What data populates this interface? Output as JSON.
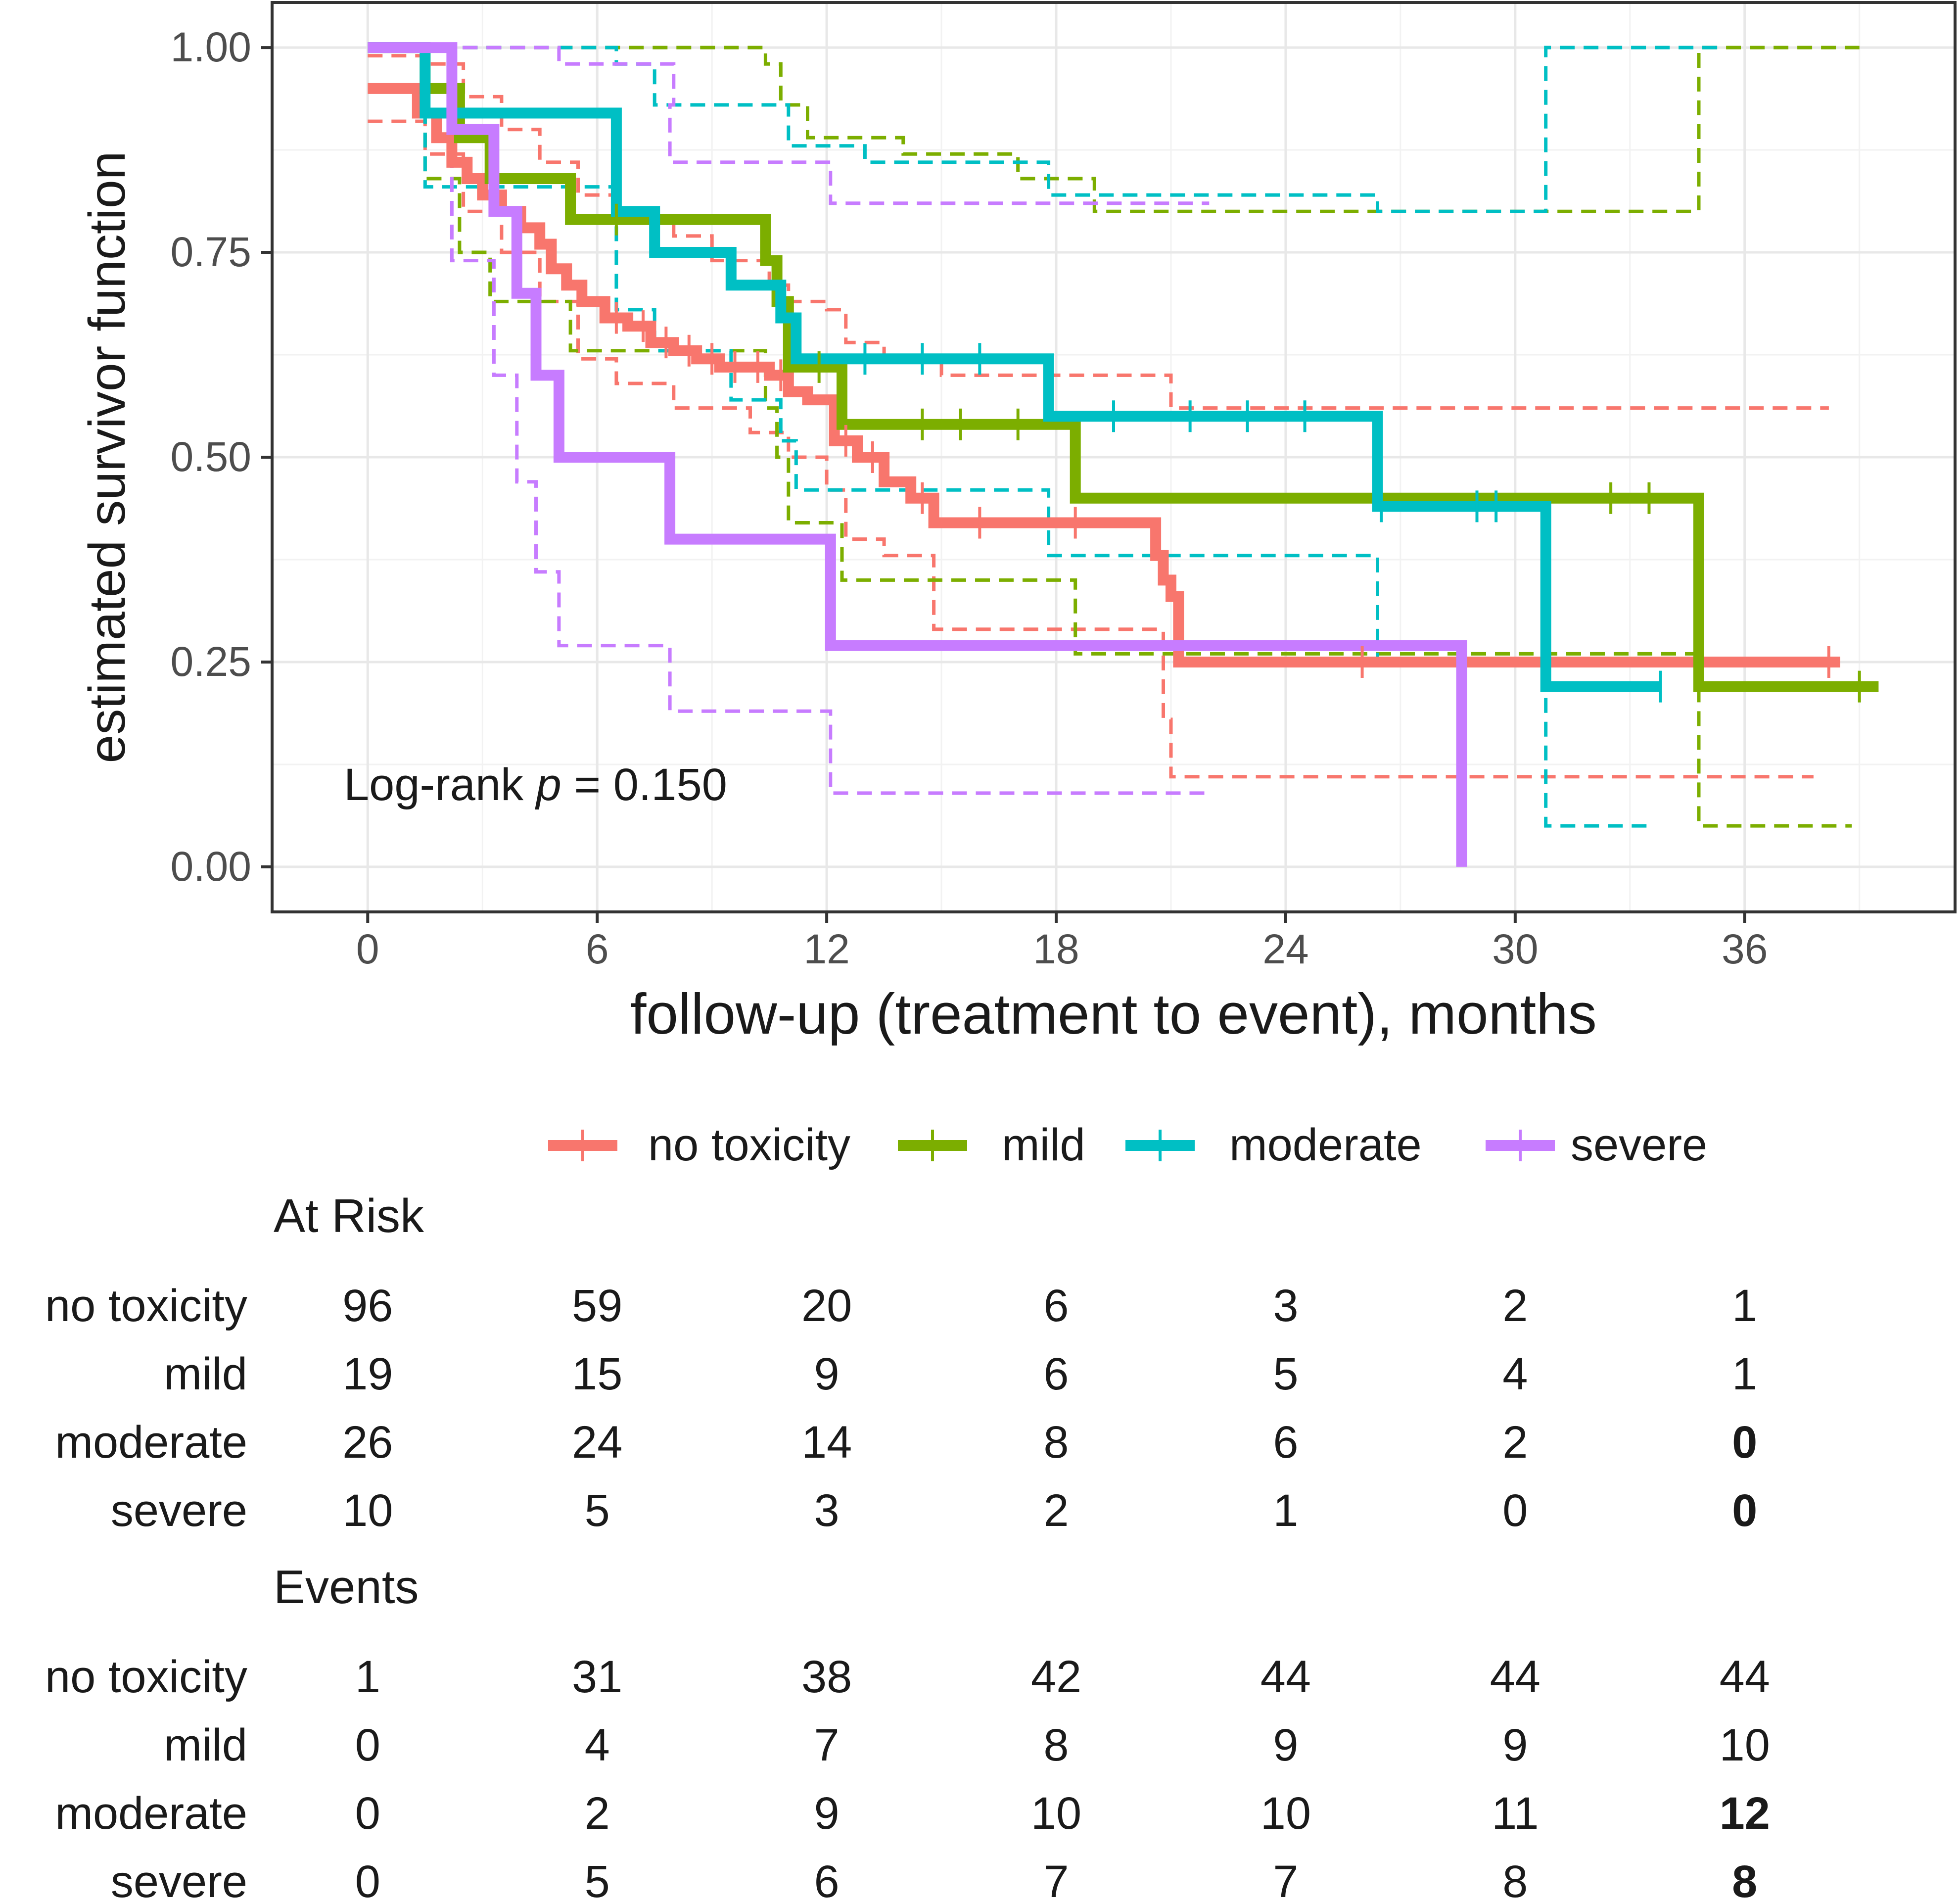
{
  "chart_data": {
    "type": "line",
    "subtype": "kaplan-meier",
    "title": "",
    "xlabel": "follow-up (treatment to event), months",
    "ylabel": "estimated survivor function",
    "xlim": [
      -2.5,
      41.5
    ],
    "ylim": [
      -0.055,
      1.055
    ],
    "x_ticks": [
      0,
      6,
      12,
      18,
      24,
      30,
      36
    ],
    "x_tick_labels": [
      "0",
      "6",
      "12",
      "18",
      "24",
      "30",
      "36"
    ],
    "y_ticks": [
      0,
      0.25,
      0.5,
      0.75,
      1
    ],
    "y_tick_labels": [
      "0.00",
      "0.25",
      "0.50",
      "0.75",
      "1.00"
    ],
    "grid": true,
    "annotation": {
      "prefix": "Log-rank ",
      "italic": "p",
      "suffix": " = 0.150"
    },
    "legend": {
      "position": "bottom",
      "entries": [
        "no toxicity",
        "mild",
        "moderate",
        "severe"
      ]
    },
    "series": [
      {
        "name": "no toxicity",
        "color": "#f8766d",
        "steps": [
          [
            0,
            0.95
          ],
          [
            1.3,
            0.92
          ],
          [
            1.8,
            0.89
          ],
          [
            2.2,
            0.86
          ],
          [
            2.6,
            0.84
          ],
          [
            3.0,
            0.82
          ],
          [
            3.5,
            0.8
          ],
          [
            4.0,
            0.78
          ],
          [
            4.5,
            0.76
          ],
          [
            4.8,
            0.73
          ],
          [
            5.2,
            0.71
          ],
          [
            5.6,
            0.69
          ],
          [
            6.2,
            0.67
          ],
          [
            6.8,
            0.66
          ],
          [
            7.4,
            0.64
          ],
          [
            8.0,
            0.63
          ],
          [
            8.6,
            0.62
          ],
          [
            9.2,
            0.61
          ],
          [
            10.5,
            0.6
          ],
          [
            11.0,
            0.58
          ],
          [
            11.5,
            0.57
          ],
          [
            12.2,
            0.52
          ],
          [
            12.8,
            0.5
          ],
          [
            13.5,
            0.47
          ],
          [
            14.2,
            0.45
          ],
          [
            14.8,
            0.42
          ],
          [
            20.6,
            0.38
          ],
          [
            20.8,
            0.35
          ],
          [
            21.0,
            0.33
          ],
          [
            21.2,
            0.25
          ]
        ],
        "end": 38.5,
        "upper": [
          [
            0,
            0.99
          ],
          [
            1.5,
            0.98
          ],
          [
            2.5,
            0.94
          ],
          [
            3.5,
            0.9
          ],
          [
            4.5,
            0.86
          ],
          [
            5.5,
            0.82
          ],
          [
            6.5,
            0.79
          ],
          [
            8.0,
            0.77
          ],
          [
            9.0,
            0.74
          ],
          [
            10.5,
            0.71
          ],
          [
            11.0,
            0.69
          ],
          [
            12.0,
            0.68
          ],
          [
            12.5,
            0.64
          ],
          [
            13.5,
            0.62
          ],
          [
            15.0,
            0.6
          ],
          [
            21.0,
            0.56
          ]
        ],
        "upper_end": 38.2,
        "lower": [
          [
            0,
            0.91
          ],
          [
            1.5,
            0.87
          ],
          [
            2.5,
            0.8
          ],
          [
            3.5,
            0.75
          ],
          [
            4.5,
            0.69
          ],
          [
            5.5,
            0.62
          ],
          [
            6.5,
            0.59
          ],
          [
            8.0,
            0.56
          ],
          [
            10.0,
            0.53
          ],
          [
            11.0,
            0.5
          ],
          [
            12.0,
            0.46
          ],
          [
            12.5,
            0.4
          ],
          [
            13.5,
            0.38
          ],
          [
            14.8,
            0.29
          ],
          [
            20.8,
            0.18
          ],
          [
            21.0,
            0.11
          ]
        ],
        "lower_end": 37.8,
        "censor": [
          6.5,
          7.2,
          7.8,
          8.4,
          9.0,
          9.6,
          10.2,
          10.8,
          12.5,
          13.2,
          14.5,
          16.0,
          18.5,
          26.0,
          38.2
        ]
      },
      {
        "name": "mild",
        "color": "#7cae00",
        "steps": [
          [
            0,
            1.0
          ],
          [
            1.5,
            0.95
          ],
          [
            2.4,
            0.89
          ],
          [
            3.2,
            0.84
          ],
          [
            5.3,
            0.79
          ],
          [
            10.4,
            0.74
          ],
          [
            10.7,
            0.69
          ],
          [
            11.0,
            0.61
          ],
          [
            12.4,
            0.54
          ],
          [
            18.5,
            0.45
          ],
          [
            34.8,
            0.22
          ]
        ],
        "end": 39.5,
        "upper": [
          [
            0,
            1.0
          ],
          [
            10.4,
            0.98
          ],
          [
            10.8,
            0.93
          ],
          [
            11.5,
            0.89
          ],
          [
            14.0,
            0.87
          ],
          [
            17.0,
            0.84
          ],
          [
            19.0,
            0.8
          ],
          [
            34.8,
            1.0
          ]
        ],
        "upper_end": 39.0,
        "lower": [
          [
            0,
            1.0
          ],
          [
            1.5,
            0.84
          ],
          [
            2.4,
            0.75
          ],
          [
            3.2,
            0.69
          ],
          [
            5.3,
            0.63
          ],
          [
            10.4,
            0.56
          ],
          [
            10.7,
            0.5
          ],
          [
            11.0,
            0.42
          ],
          [
            12.4,
            0.35
          ],
          [
            18.5,
            0.26
          ],
          [
            34.8,
            0.05
          ]
        ],
        "lower_end": 38.8,
        "censor": [
          6.5,
          11.8,
          14.5,
          15.5,
          17.0,
          32.5,
          33.5,
          39.0
        ]
      },
      {
        "name": "moderate",
        "color": "#00bfc4",
        "steps": [
          [
            0,
            1.0
          ],
          [
            1.5,
            0.92
          ],
          [
            6.5,
            0.8
          ],
          [
            7.5,
            0.75
          ],
          [
            9.5,
            0.71
          ],
          [
            10.8,
            0.67
          ],
          [
            11.2,
            0.62
          ],
          [
            17.8,
            0.55
          ],
          [
            26.4,
            0.44
          ],
          [
            30.8,
            0.22
          ]
        ],
        "end": 33.8,
        "upper": [
          [
            0,
            1.0
          ],
          [
            6.5,
            0.98
          ],
          [
            7.5,
            0.93
          ],
          [
            11.0,
            0.88
          ],
          [
            13.0,
            0.86
          ],
          [
            17.8,
            0.82
          ],
          [
            26.4,
            0.8
          ],
          [
            30.8,
            1.0
          ]
        ],
        "upper_end": 35.5,
        "lower": [
          [
            0,
            1.0
          ],
          [
            1.5,
            0.83
          ],
          [
            6.5,
            0.68
          ],
          [
            7.5,
            0.63
          ],
          [
            9.5,
            0.57
          ],
          [
            10.8,
            0.52
          ],
          [
            11.2,
            0.46
          ],
          [
            17.8,
            0.38
          ],
          [
            26.4,
            0.25
          ],
          [
            30.8,
            0.05
          ]
        ],
        "lower_end": 33.5,
        "censor": [
          13.0,
          14.5,
          16.0,
          19.5,
          21.5,
          23.0,
          24.5,
          26.5,
          29.0,
          29.5,
          33.8
        ]
      },
      {
        "name": "severe",
        "color": "#c77cff",
        "steps": [
          [
            0,
            1.0
          ],
          [
            2.2,
            0.9
          ],
          [
            3.3,
            0.8
          ],
          [
            3.9,
            0.7
          ],
          [
            4.4,
            0.6
          ],
          [
            5.0,
            0.5
          ],
          [
            7.9,
            0.4
          ],
          [
            12.1,
            0.27
          ],
          [
            28.6,
            0.0
          ]
        ],
        "end": 28.6,
        "upper": [
          [
            0,
            1.0
          ],
          [
            5.0,
            0.98
          ],
          [
            8.0,
            0.93
          ],
          [
            7.9,
            0.86
          ],
          [
            12.1,
            0.81
          ]
        ],
        "upper_end": 22.0,
        "lower": [
          [
            0,
            1.0
          ],
          [
            2.2,
            0.74
          ],
          [
            3.3,
            0.6
          ],
          [
            3.9,
            0.47
          ],
          [
            4.4,
            0.36
          ],
          [
            5.0,
            0.27
          ],
          [
            7.9,
            0.19
          ],
          [
            12.1,
            0.09
          ]
        ],
        "lower_end": 22.0,
        "censor": []
      }
    ],
    "risk_tables": [
      {
        "title": "At Risk",
        "times": [
          0,
          6,
          12,
          18,
          24,
          30,
          36
        ],
        "rows": [
          {
            "group": "no toxicity",
            "values": [
              "96",
              "59",
              "20",
              "6",
              "3",
              "2",
              "1"
            ]
          },
          {
            "group": "mild",
            "values": [
              "19",
              "15",
              "9",
              "6",
              "5",
              "4",
              "1"
            ]
          },
          {
            "group": "moderate",
            "values": [
              "26",
              "24",
              "14",
              "8",
              "6",
              "2",
              "0"
            ]
          },
          {
            "group": "severe",
            "values": [
              "10",
              "5",
              "3",
              "2",
              "1",
              "0",
              "0"
            ]
          }
        ]
      },
      {
        "title": "Events",
        "times": [
          0,
          6,
          12,
          18,
          24,
          30,
          36
        ],
        "rows": [
          {
            "group": "no toxicity",
            "values": [
              "1",
              "31",
              "38",
              "42",
              "44",
              "44",
              "44"
            ]
          },
          {
            "group": "mild",
            "values": [
              "0",
              "4",
              "7",
              "8",
              "9",
              "9",
              "10"
            ]
          },
          {
            "group": "moderate",
            "values": [
              "0",
              "2",
              "9",
              "10",
              "10",
              "11",
              "12"
            ]
          },
          {
            "group": "severe",
            "values": [
              "0",
              "5",
              "6",
              "7",
              "7",
              "8",
              "8"
            ]
          }
        ]
      }
    ]
  }
}
